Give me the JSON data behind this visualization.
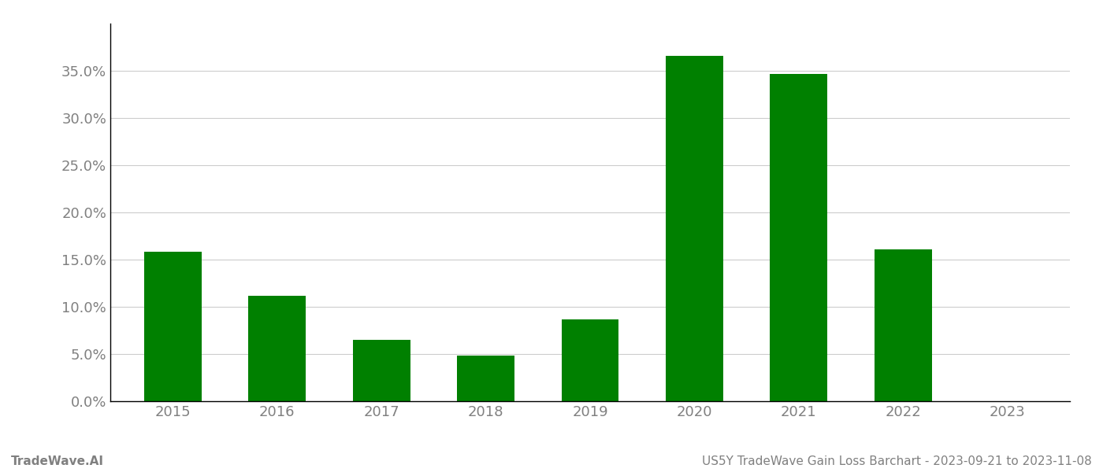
{
  "categories": [
    "2015",
    "2016",
    "2017",
    "2018",
    "2019",
    "2020",
    "2021",
    "2022",
    "2023"
  ],
  "values": [
    0.158,
    0.112,
    0.065,
    0.048,
    0.087,
    0.366,
    0.347,
    0.161,
    0.0
  ],
  "bar_color": "#008000",
  "background_color": "#ffffff",
  "grid_color": "#cccccc",
  "tick_label_color": "#808080",
  "ylim": [
    0,
    0.4
  ],
  "yticks": [
    0.0,
    0.05,
    0.1,
    0.15,
    0.2,
    0.25,
    0.3,
    0.35
  ],
  "footer_left": "TradeWave.AI",
  "footer_right": "US5Y TradeWave Gain Loss Barchart - 2023-09-21 to 2023-11-08",
  "footer_color": "#808080",
  "footer_fontsize": 11,
  "bar_width": 0.55,
  "tick_fontsize": 13
}
